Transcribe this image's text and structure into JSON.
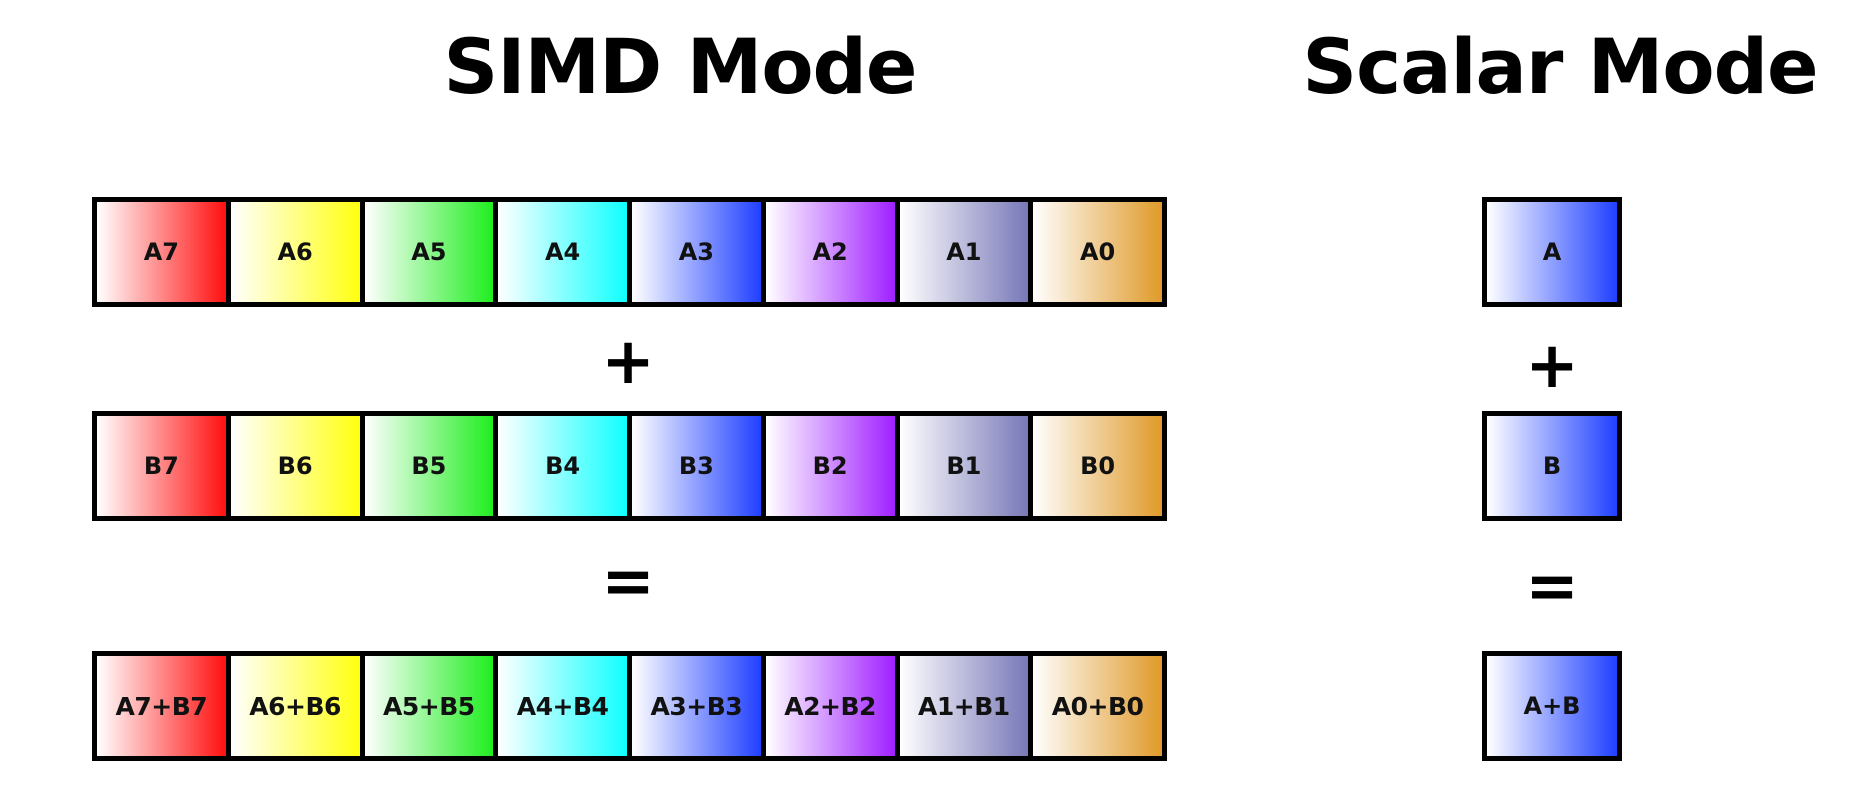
{
  "titles": {
    "simd": "SIMD Mode",
    "scalar": "Scalar Mode"
  },
  "simd": {
    "a": [
      "A7",
      "A6",
      "A5",
      "A4",
      "A3",
      "A2",
      "A1",
      "A0"
    ],
    "b": [
      "B7",
      "B6",
      "B5",
      "B4",
      "B3",
      "B2",
      "B1",
      "B0"
    ],
    "sum": [
      "A7+B7",
      "A6+B6",
      "A5+B5",
      "A4+B4",
      "A3+B3",
      "A2+B2",
      "A1+B1",
      "A0+B0"
    ],
    "colors": [
      "#ff1010",
      "#ffff10",
      "#20ee20",
      "#10ffff",
      "#2040ff",
      "#a020ff",
      "#7878b8",
      "#e09a2a"
    ],
    "plus": "+",
    "equals": "="
  },
  "scalar": {
    "a": "A",
    "b": "B",
    "sum": "A+B",
    "color": "#2040ff",
    "plus": "+",
    "equals": "="
  }
}
